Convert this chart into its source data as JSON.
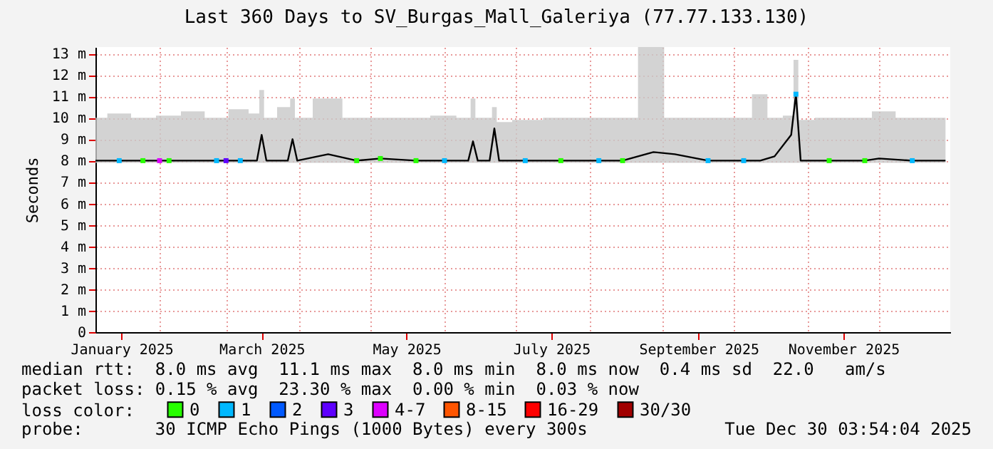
{
  "chart_data": {
    "type": "line",
    "title": "Last 360 Days to SV_Burgas_Mall_Galeriya (77.77.133.130)",
    "ylabel": "Seconds",
    "x": [
      "2025-01-05",
      "2025-01-15",
      "2025-01-25",
      "2025-02-05",
      "2025-02-15",
      "2025-02-25",
      "2025-03-07",
      "2025-03-14",
      "2025-03-16",
      "2025-03-18",
      "2025-03-27",
      "2025-03-29",
      "2025-03-31",
      "2025-04-13",
      "2025-04-25",
      "2025-05-05",
      "2025-05-20",
      "2025-06-01",
      "2025-06-11",
      "2025-06-13",
      "2025-06-15",
      "2025-06-20",
      "2025-06-22",
      "2025-06-24",
      "2025-07-05",
      "2025-07-20",
      "2025-08-05",
      "2025-08-15",
      "2025-08-28",
      "2025-09-06",
      "2025-09-20",
      "2025-10-05",
      "2025-10-12",
      "2025-10-18",
      "2025-10-25",
      "2025-10-27",
      "2025-10-29",
      "2025-11-10",
      "2025-11-25",
      "2025-12-01",
      "2025-12-15",
      "2025-12-29"
    ],
    "series": [
      {
        "color": "#000000",
        "values": [
          8.0,
          8.0,
          8.0,
          8.0,
          8.0,
          8.0,
          8.0,
          8.0,
          9.2,
          8.0,
          8.0,
          9.0,
          8.0,
          8.3,
          8.0,
          8.1,
          8.0,
          8.0,
          8.0,
          8.9,
          8.0,
          8.0,
          9.5,
          8.0,
          8.0,
          8.0,
          8.0,
          8.0,
          8.4,
          8.3,
          8.0,
          8.0,
          8.0,
          8.2,
          9.2,
          11.1,
          8.0,
          8.0,
          8.0,
          8.1,
          8.0,
          8.0
        ],
        "lower": [
          7.9,
          7.9,
          7.9,
          7.9,
          7.9,
          7.9,
          7.9,
          7.9,
          7.9,
          7.9,
          7.9,
          7.9,
          7.9,
          7.9,
          7.9,
          7.9,
          7.9,
          7.9,
          7.9,
          7.9,
          7.9,
          7.9,
          7.9,
          7.9,
          7.9,
          7.9,
          7.9,
          7.9,
          7.9,
          7.9,
          7.9,
          7.9,
          7.9,
          7.9,
          7.9,
          7.9,
          7.9,
          7.9,
          7.9,
          7.9,
          7.9,
          7.9
        ],
        "upper": [
          10.0,
          10.2,
          10.0,
          10.1,
          10.3,
          10.0,
          10.4,
          10.2,
          11.3,
          10.0,
          10.5,
          10.9,
          10.0,
          10.9,
          10.0,
          10.0,
          10.0,
          10.1,
          10.0,
          10.9,
          10.0,
          10.0,
          10.5,
          9.8,
          9.9,
          10.0,
          10.0,
          10.0,
          13.3,
          10.0,
          10.0,
          10.0,
          11.1,
          10.0,
          10.1,
          12.7,
          9.9,
          10.0,
          10.0,
          10.3,
          10.0,
          10.0
        ]
      },
      {
        "name": "0",
        "type": "scatter",
        "marker": "square",
        "color": "#26ff00",
        "x": [
          "2025-01-25",
          "2025-02-05",
          "2025-04-25",
          "2025-05-05",
          "2025-05-20",
          "2025-07-20",
          "2025-08-15",
          "2025-11-10",
          "2025-11-25"
        ],
        "values": [
          8.0,
          8.0,
          8.0,
          8.1,
          8.0,
          8.0,
          8.0,
          8.0,
          8.0
        ]
      },
      {
        "name": "1",
        "type": "scatter",
        "marker": "square",
        "color": "#00b8ff",
        "x": [
          "2025-01-15",
          "2025-02-25",
          "2025-03-07",
          "2025-06-01",
          "2025-07-05",
          "2025-08-05",
          "2025-09-20",
          "2025-10-05",
          "2025-10-27",
          "2025-12-15"
        ],
        "values": [
          8.0,
          8.0,
          8.0,
          8.0,
          8.0,
          8.0,
          8.0,
          8.0,
          11.1,
          8.0
        ]
      },
      {
        "name": "2",
        "type": "scatter",
        "marker": "square",
        "color": "#0059ff",
        "values": [
          null,
          null,
          null,
          null,
          null,
          null,
          null,
          null,
          null,
          null,
          null,
          null,
          null,
          null,
          null,
          null,
          null,
          null,
          null,
          null,
          null,
          null,
          null,
          null,
          null,
          null,
          null,
          null,
          null,
          null,
          null,
          null,
          null,
          null,
          null,
          null,
          null,
          null,
          null,
          null,
          null,
          null
        ]
      },
      {
        "name": "3",
        "type": "scatter",
        "marker": "square",
        "color": "#5e00ff",
        "x": [
          "2025-03-01"
        ],
        "values": [
          8.0
        ]
      },
      {
        "name": "4-7",
        "type": "scatter",
        "marker": "square",
        "color": "#dd00ff",
        "x": [
          "2025-02-01"
        ],
        "values": [
          8.0
        ]
      },
      {
        "name": "8-15",
        "type": "scatter",
        "marker": "square",
        "color": "#ff5500",
        "values": [
          null,
          null,
          null,
          null,
          null,
          null,
          null,
          null,
          null,
          null,
          null,
          null,
          null,
          null,
          null,
          null,
          null,
          null,
          null,
          null,
          null,
          null,
          null,
          null,
          null,
          null,
          null,
          null,
          null,
          null,
          null,
          null,
          null,
          null,
          null,
          null,
          null,
          null,
          null,
          null,
          null,
          null
        ]
      },
      {
        "name": "16-29",
        "type": "scatter",
        "marker": "square",
        "color": "#ff0000",
        "values": [
          null,
          null,
          null,
          null,
          null,
          null,
          null,
          null,
          null,
          null,
          null,
          null,
          null,
          null,
          null,
          null,
          null,
          null,
          null,
          null,
          null,
          null,
          null,
          null,
          null,
          null,
          null,
          null,
          null,
          null,
          null,
          null,
          null,
          null,
          null,
          null,
          null,
          null,
          null,
          null,
          null,
          null
        ]
      },
      {
        "name": "30/30",
        "type": "scatter",
        "marker": "square",
        "color": "#a10000",
        "values": [
          null,
          null,
          null,
          null,
          null,
          null,
          null,
          null,
          null,
          null,
          null,
          null,
          null,
          null,
          null,
          null,
          null,
          null,
          null,
          null,
          null,
          null,
          null,
          null,
          null,
          null,
          null,
          null,
          null,
          null,
          null,
          null,
          null,
          null,
          null,
          null,
          null,
          null,
          null,
          null,
          null,
          null
        ]
      }
    ],
    "legend": "bottom",
    "legend_title": "loss color:",
    "grid": true,
    "xlim": [
      "2025-01-05",
      "2025-12-31"
    ],
    "xticks": [
      {
        "value": "2025-01-16",
        "label": "January 2025"
      },
      {
        "value": "2025-02-01",
        "label": null
      },
      {
        "value": "2025-03-01",
        "label": null
      },
      {
        "value": "2025-03-16",
        "label": "March 2025"
      },
      {
        "value": "2025-04-01",
        "label": null
      },
      {
        "value": "2025-05-01",
        "label": null
      },
      {
        "value": "2025-05-16",
        "label": "May 2025"
      },
      {
        "value": "2025-06-01",
        "label": null
      },
      {
        "value": "2025-07-01",
        "label": null
      },
      {
        "value": "2025-07-16",
        "label": "July 2025"
      },
      {
        "value": "2025-08-01",
        "label": null
      },
      {
        "value": "2025-09-01",
        "label": null
      },
      {
        "value": "2025-09-16",
        "label": "September 2025"
      },
      {
        "value": "2025-10-01",
        "label": null
      },
      {
        "value": "2025-11-01",
        "label": null
      },
      {
        "value": "2025-11-16",
        "label": "November 2025"
      },
      {
        "value": "2025-12-01",
        "label": null
      }
    ],
    "ylim": [
      0,
      13.3
    ],
    "yticks": [
      0,
      {
        "value": 1,
        "label": "1 m"
      },
      {
        "value": 2,
        "label": "2 m"
      },
      {
        "value": 3,
        "label": "3 m"
      },
      {
        "value": 4,
        "label": "4 m"
      },
      {
        "value": 5,
        "label": "5 m"
      },
      {
        "value": 6,
        "label": "6 m"
      },
      {
        "value": 7,
        "label": "7 m"
      },
      {
        "value": 8,
        "label": "8 m"
      },
      {
        "value": 9,
        "label": "9 m"
      },
      {
        "value": 10,
        "label": "10 m"
      },
      {
        "value": 11,
        "label": "11 m"
      },
      {
        "value": 12,
        "label": "12 m"
      },
      {
        "value": 13,
        "label": "13 m"
      }
    ],
    "annotations": [
      "median rtt:  8.0 ms avg  11.1 ms max  8.0 ms min  8.0 ms now  0.4 ms sd  22.0   am/s",
      "packet loss: 0.15 % avg  23.30 % max  0.00 % min  0.03 % now",
      "probe:       30 ICMP Echo Pings (1000 Bytes) every 300s",
      "Tue Dec 30 03:54:04 2025"
    ]
  }
}
